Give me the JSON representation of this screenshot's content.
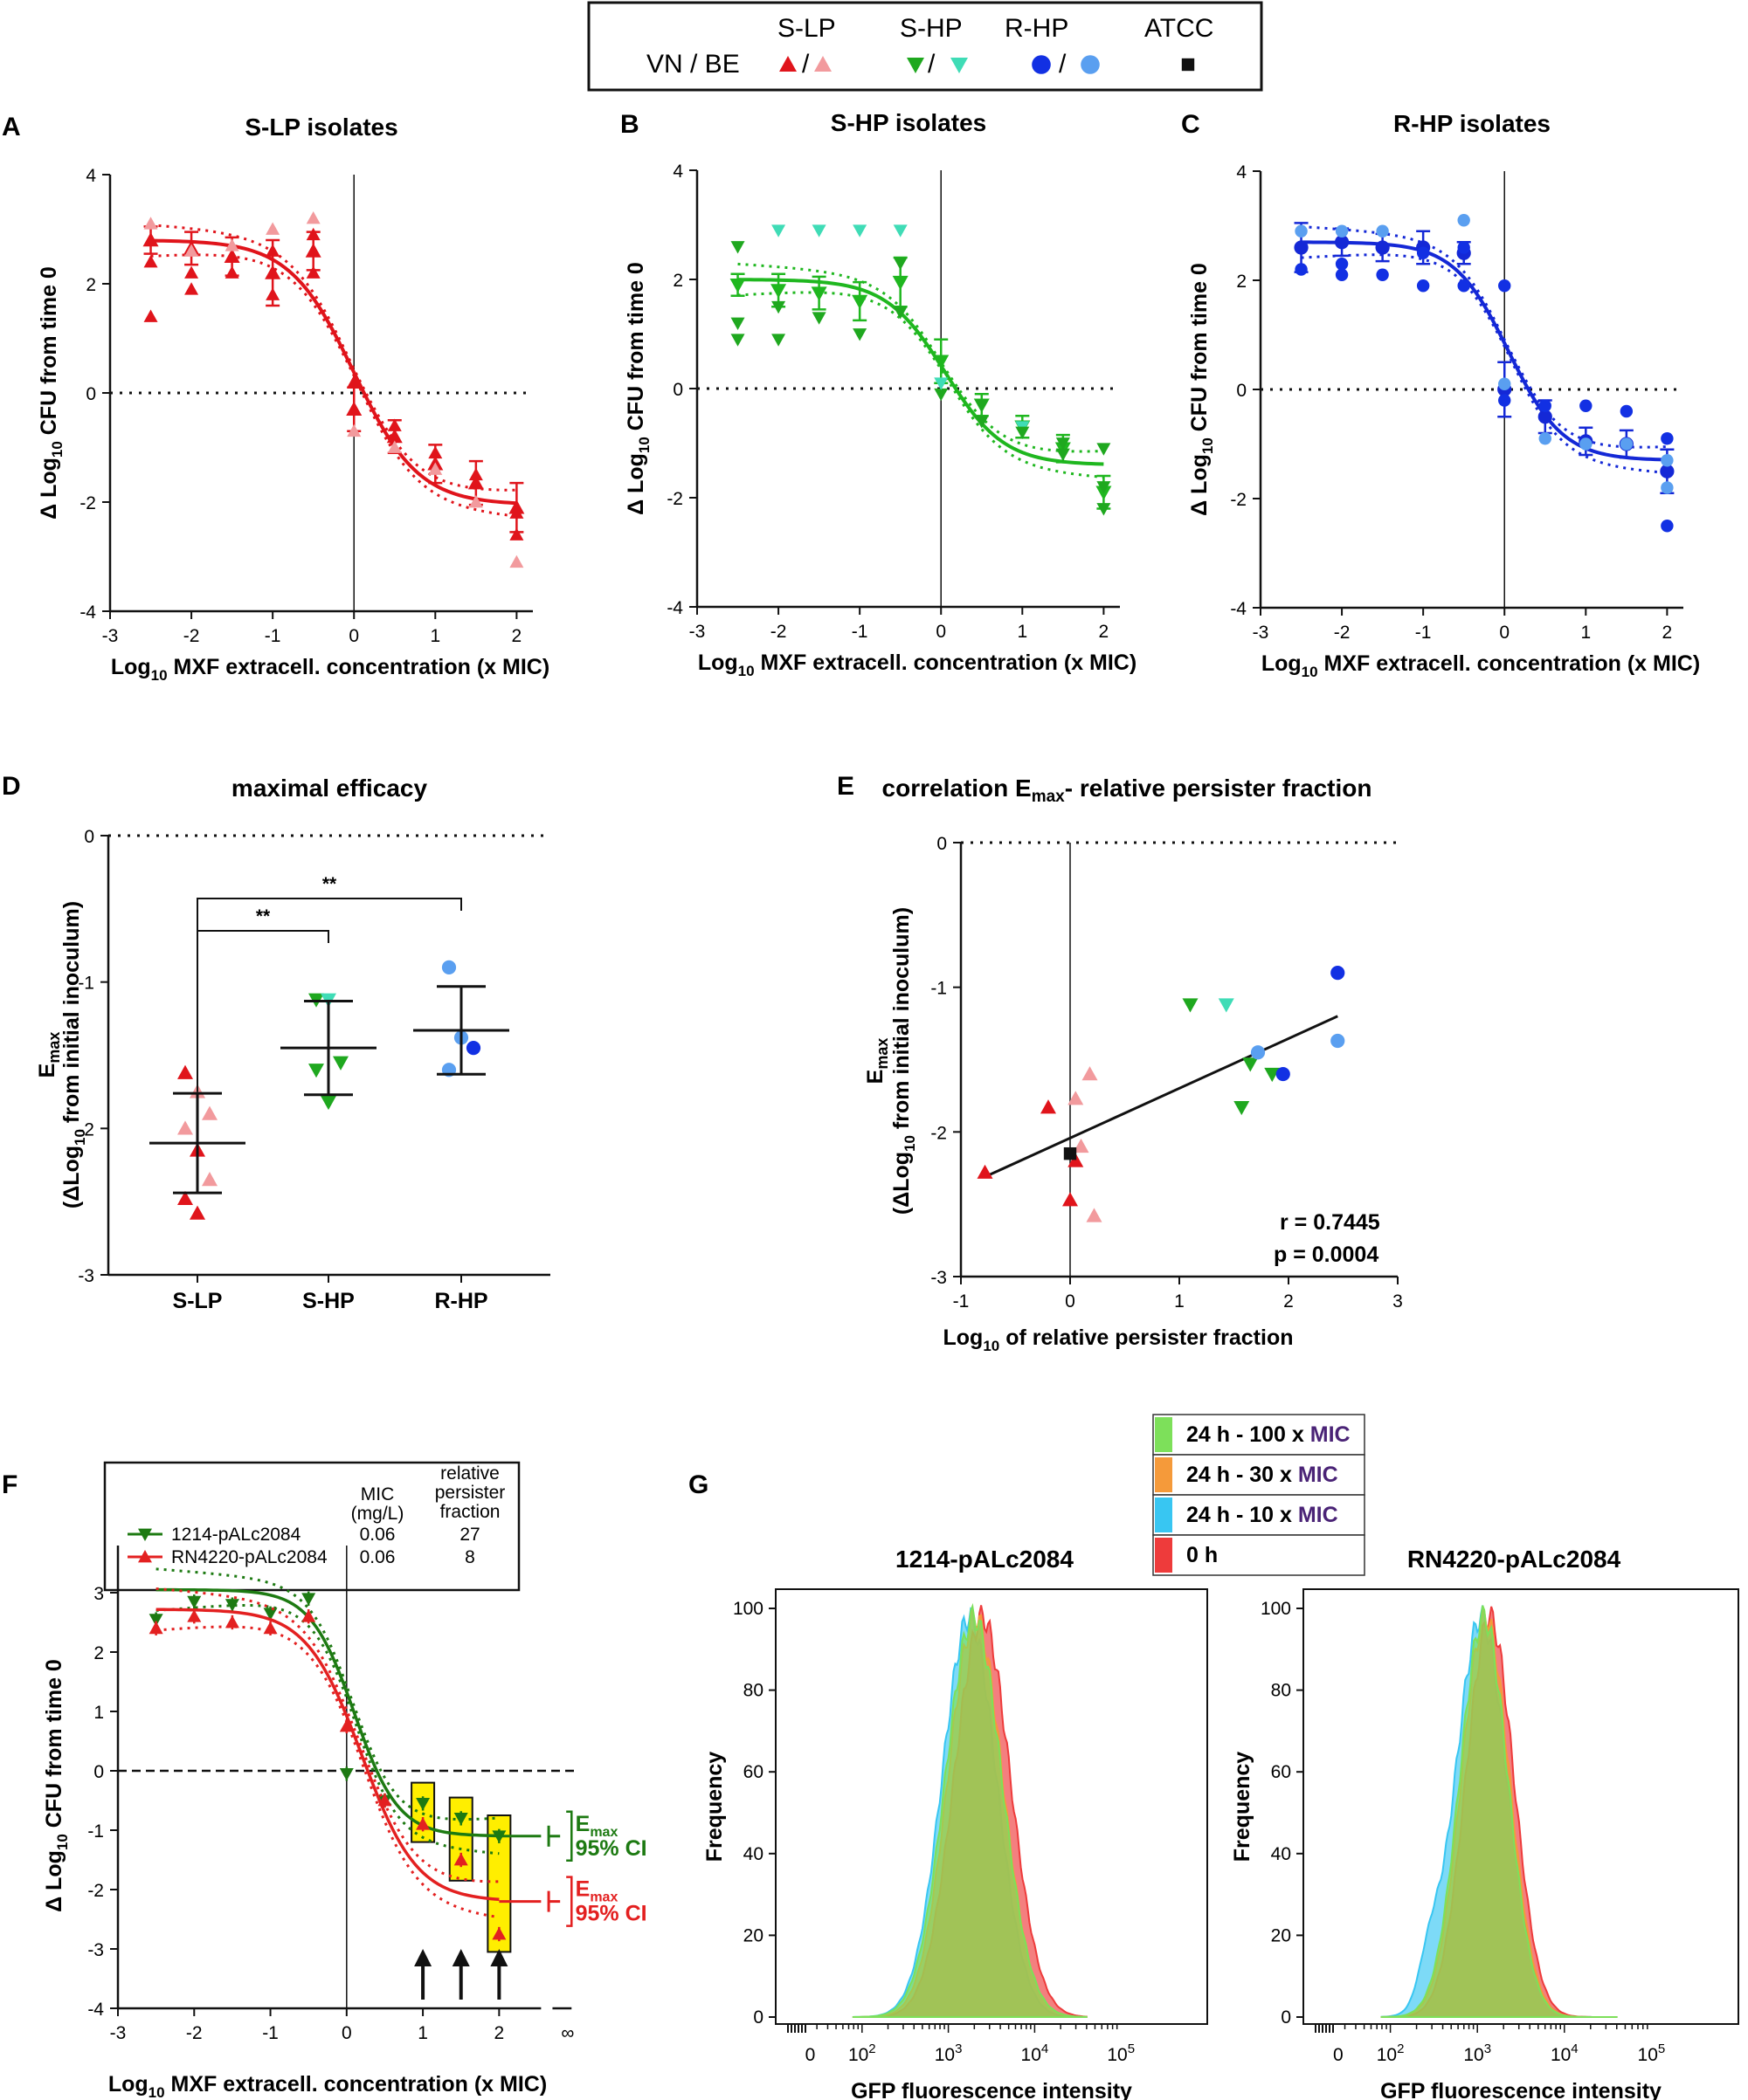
{
  "colors": {
    "vn_lp": "#e0141b",
    "be_lp": "#f29a9d",
    "vn_hp": "#1fa81f",
    "be_hp": "#3fdcb6",
    "vn_rhp": "#1230e3",
    "be_rhp": "#5a9ff0",
    "atcc": "#111111",
    "fit_lp": "#e0141b",
    "fit_hp": "#1fb71f",
    "fit_rhp": "#1428d6",
    "dark_green": "#1d7a12",
    "red": "#e32020",
    "hist_green": "#7de05a",
    "hist_orange": "#f59a3a",
    "hist_cyan": "#38c6f2",
    "hist_red": "#ee3b3b",
    "highlight": "#ffee00",
    "mic_purple": "#4a2376"
  },
  "legend": {
    "row_label": "VN / BE",
    "groups": [
      {
        "label": "S-LP",
        "symbol": "triangle-up"
      },
      {
        "label": "S-HP",
        "symbol": "triangle-down"
      },
      {
        "label": "R-HP",
        "symbol": "circle"
      },
      {
        "label": "ATCC",
        "symbol": "square"
      }
    ],
    "separator": "/"
  },
  "panel_letters": [
    "A",
    "B",
    "C",
    "D",
    "E",
    "F",
    "G"
  ],
  "chart_data": [
    {
      "id": "A",
      "type": "scatter",
      "title": "S-LP isolates",
      "xlabel": "Log10 MXF extracell. concentration (x MIC)",
      "ylabel": "Δ Log10 CFU from time 0",
      "xlim": [
        -3,
        2.2
      ],
      "ylim": [
        -4,
        4
      ],
      "xticks": [
        -3,
        -2,
        -1,
        0,
        1,
        2
      ],
      "yticks": [
        -4,
        -2,
        0,
        2,
        4
      ],
      "fit": {
        "top": 2.8,
        "bottom": -2.05,
        "ec50": 0.0,
        "hill": 1.1
      },
      "x": [
        -2.5,
        -2,
        -1.5,
        -1,
        -0.5,
        0,
        0.5,
        1,
        1.5,
        2
      ],
      "means": [
        2.8,
        2.65,
        2.5,
        2.2,
        2.6,
        -0.3,
        -0.8,
        -1.3,
        -1.65,
        -2.1
      ],
      "sd": [
        0.25,
        0.3,
        0.35,
        0.6,
        0.35,
        0.4,
        0.3,
        0.35,
        0.4,
        0.45
      ],
      "points": [
        [
          -2.5,
          1.4
        ],
        [
          -2.5,
          2.4
        ],
        [
          -2.5,
          3.1
        ],
        [
          -2,
          2.2
        ],
        [
          -2,
          1.9
        ],
        [
          -2,
          2.6
        ],
        [
          -1.5,
          2.2
        ],
        [
          -1.5,
          2.7
        ],
        [
          -1,
          3.0
        ],
        [
          -1,
          2.6
        ],
        [
          -1,
          1.8
        ],
        [
          -0.5,
          2.2
        ],
        [
          -0.5,
          3.2
        ],
        [
          -0.5,
          2.9
        ],
        [
          0,
          -0.3
        ],
        [
          0,
          -0.7
        ],
        [
          0,
          0.2
        ],
        [
          0.5,
          -0.6
        ],
        [
          0.5,
          -1.0
        ],
        [
          1,
          -1.1
        ],
        [
          1,
          -1.4
        ],
        [
          1.5,
          -1.5
        ],
        [
          1.5,
          -2.0
        ],
        [
          2,
          -2.2
        ],
        [
          2,
          -3.1
        ],
        [
          2,
          -2.6
        ]
      ],
      "pointColors": [
        "vn_lp",
        "vn_lp",
        "be_lp",
        "vn_lp",
        "vn_lp",
        "be_lp",
        "vn_lp",
        "be_lp",
        "be_lp",
        "vn_lp",
        "vn_lp",
        "vn_lp",
        "be_lp",
        "vn_lp",
        "vn_lp",
        "be_lp",
        "vn_lp",
        "vn_lp",
        "be_lp",
        "vn_lp",
        "be_lp",
        "vn_lp",
        "be_lp",
        "vn_lp",
        "be_lp",
        "vn_lp"
      ],
      "marker": "triangle-up",
      "fitColor": "fit_lp"
    },
    {
      "id": "B",
      "type": "scatter",
      "title": "S-HP isolates",
      "xlabel": "Log10 MXF extracell. concentration (x MIC)",
      "ylabel": "Δ Log10 CFU from time 0",
      "xlim": [
        -3,
        2.2
      ],
      "ylim": [
        -4,
        4
      ],
      "xticks": [
        -3,
        -2,
        -1,
        0,
        1,
        2
      ],
      "yticks": [
        -4,
        -2,
        0,
        2,
        4
      ],
      "fit": {
        "top": 2.0,
        "bottom": -1.4,
        "ec50": 0.05,
        "hill": 1.2
      },
      "x": [
        -2.5,
        -2,
        -1.5,
        -1,
        -0.5,
        0,
        0.5,
        1,
        1.5,
        2
      ],
      "means": [
        1.9,
        1.8,
        1.75,
        1.6,
        1.95,
        0.5,
        -0.3,
        -0.7,
        -1.1,
        -1.9
      ],
      "sd": [
        0.2,
        0.3,
        0.3,
        0.35,
        0.45,
        0.4,
        0.2,
        0.2,
        0.25,
        0.3
      ],
      "points": [
        [
          -2.5,
          2.6
        ],
        [
          -2.5,
          1.2
        ],
        [
          -2.5,
          0.9
        ],
        [
          -2,
          2.9
        ],
        [
          -2,
          0.9
        ],
        [
          -2,
          1.5
        ],
        [
          -1.5,
          2.9
        ],
        [
          -1.5,
          1.3
        ],
        [
          -1,
          2.9
        ],
        [
          -1,
          1.0
        ],
        [
          -0.5,
          2.9
        ],
        [
          -0.5,
          2.3
        ],
        [
          -0.5,
          1.4
        ],
        [
          0,
          -0.1
        ],
        [
          0,
          0.1
        ],
        [
          0.5,
          -0.3
        ],
        [
          0.5,
          -0.6
        ],
        [
          1,
          -0.7
        ],
        [
          1,
          -0.8
        ],
        [
          1.5,
          -1.0
        ],
        [
          1.5,
          -1.2
        ],
        [
          2,
          -1.1
        ],
        [
          2,
          -1.8
        ],
        [
          2,
          -2.2
        ]
      ],
      "pointColors": [
        "vn_hp",
        "vn_hp",
        "vn_hp",
        "be_hp",
        "vn_hp",
        "vn_hp",
        "be_hp",
        "vn_hp",
        "be_hp",
        "vn_hp",
        "be_hp",
        "vn_hp",
        "vn_hp",
        "vn_hp",
        "be_hp",
        "vn_hp",
        "vn_hp",
        "be_hp",
        "vn_hp",
        "vn_hp",
        "vn_hp",
        "vn_hp",
        "vn_hp",
        "vn_hp"
      ],
      "marker": "triangle-down",
      "fitColor": "fit_hp"
    },
    {
      "id": "C",
      "type": "scatter",
      "title": "R-HP isolates",
      "xlabel": "Log10 MXF extracell. concentration (x MIC)",
      "ylabel": "Δ Log10 CFU from time 0",
      "xlim": [
        -3,
        2.2
      ],
      "ylim": [
        -4,
        4
      ],
      "xticks": [
        -3,
        -2,
        -1,
        0,
        1,
        2
      ],
      "yticks": [
        -4,
        -2,
        0,
        2,
        4
      ],
      "fit": {
        "top": 2.7,
        "bottom": -1.3,
        "ec50": 0.05,
        "hill": 1.3
      },
      "x": [
        -2.5,
        -2,
        -1.5,
        -1,
        -0.5,
        0,
        0.5,
        1,
        1.5,
        2
      ],
      "means": [
        2.6,
        2.7,
        2.6,
        2.6,
        2.5,
        0.0,
        -0.5,
        -0.95,
        -1.0,
        -1.5
      ],
      "sd": [
        0.45,
        0.25,
        0.25,
        0.3,
        0.2,
        0.5,
        0.3,
        0.25,
        0.25,
        0.4
      ],
      "points": [
        [
          -2.5,
          2.2
        ],
        [
          -2.5,
          2.9
        ],
        [
          -2,
          2.1
        ],
        [
          -2,
          2.3
        ],
        [
          -2,
          2.9
        ],
        [
          -1.5,
          2.1
        ],
        [
          -1.5,
          2.9
        ],
        [
          -1,
          2.5
        ],
        [
          -1,
          1.9
        ],
        [
          -0.5,
          3.1
        ],
        [
          -0.5,
          2.6
        ],
        [
          -0.5,
          1.9
        ],
        [
          0,
          1.9
        ],
        [
          0,
          -0.2
        ],
        [
          0,
          0.1
        ],
        [
          0.5,
          -0.3
        ],
        [
          0.5,
          -0.9
        ],
        [
          1,
          -0.3
        ],
        [
          1,
          -1.0
        ],
        [
          1.5,
          -0.4
        ],
        [
          1.5,
          -1.0
        ],
        [
          2,
          -0.9
        ],
        [
          2,
          -1.3
        ],
        [
          2,
          -1.8
        ],
        [
          2,
          -2.5
        ]
      ],
      "pointColors": [
        "vn_rhp",
        "be_rhp",
        "vn_rhp",
        "vn_rhp",
        "be_rhp",
        "vn_rhp",
        "be_rhp",
        "vn_rhp",
        "vn_rhp",
        "be_rhp",
        "vn_rhp",
        "vn_rhp",
        "vn_rhp",
        "vn_rhp",
        "be_rhp",
        "vn_rhp",
        "be_rhp",
        "vn_rhp",
        "be_rhp",
        "vn_rhp",
        "be_rhp",
        "vn_rhp",
        "be_rhp",
        "be_rhp",
        "vn_rhp"
      ],
      "marker": "circle",
      "fitColor": "fit_rhp"
    },
    {
      "id": "D",
      "type": "scatter",
      "title": "maximal efficacy",
      "ylabel_main": "E",
      "ylabel_sub": "max",
      "ylabel2": "(ΔLog10 from initial inoculum)",
      "ylim": [
        -3,
        0
      ],
      "yticks": [
        -3,
        -2,
        -1,
        0
      ],
      "categories": [
        "S-LP",
        "S-HP",
        "R-HP"
      ],
      "groups": [
        {
          "mean": -2.1,
          "sd": 0.34,
          "points": [
            [
              -1.62,
              "vn_lp"
            ],
            [
              -1.75,
              "be_lp"
            ],
            [
              -1.9,
              "be_lp"
            ],
            [
              -2.0,
              "be_lp"
            ],
            [
              -2.15,
              "vn_lp"
            ],
            [
              -2.35,
              "be_lp"
            ],
            [
              -2.48,
              "vn_lp"
            ],
            [
              -2.58,
              "vn_lp"
            ]
          ],
          "marker": "triangle-up"
        },
        {
          "mean": -1.45,
          "sd": 0.32,
          "points": [
            [
              -1.12,
              "vn_hp"
            ],
            [
              -1.12,
              "be_hp"
            ],
            [
              -1.55,
              "vn_hp"
            ],
            [
              -1.6,
              "vn_hp"
            ],
            [
              -1.82,
              "vn_hp"
            ]
          ],
          "marker": "triangle-down"
        },
        {
          "mean": -1.33,
          "sd": 0.3,
          "points": [
            [
              -0.9,
              "be_rhp"
            ],
            [
              -1.38,
              "be_rhp"
            ],
            [
              -1.45,
              "vn_rhp"
            ],
            [
              -1.6,
              "be_rhp"
            ]
          ],
          "marker": "circle"
        }
      ],
      "significance": [
        {
          "from": 0,
          "to": 1,
          "label": "**"
        },
        {
          "from": 0,
          "to": 2,
          "label": "**"
        }
      ]
    },
    {
      "id": "E",
      "type": "scatter",
      "title_main": "correlation E",
      "title_sub": "max",
      "title_rest": "- relative persister fraction",
      "xlabel": "Log10 of relative persister fraction",
      "xlim": [
        -1,
        3
      ],
      "ylim": [
        -3,
        0
      ],
      "xticks": [
        -1,
        0,
        1,
        2,
        3
      ],
      "yticks": [
        -3,
        -2,
        -1,
        0
      ],
      "regression": {
        "x0": -0.75,
        "y0": -2.3,
        "x1": 2.45,
        "y1": -1.2
      },
      "points": [
        {
          "x": -0.78,
          "y": -2.28,
          "c": "vn_lp",
          "m": "triangle-up"
        },
        {
          "x": -0.2,
          "y": -1.83,
          "c": "vn_lp",
          "m": "triangle-up"
        },
        {
          "x": 0.05,
          "y": -1.77,
          "c": "be_lp",
          "m": "triangle-up"
        },
        {
          "x": 0.18,
          "y": -1.6,
          "c": "be_lp",
          "m": "triangle-up"
        },
        {
          "x": 0.1,
          "y": -2.1,
          "c": "be_lp",
          "m": "triangle-up"
        },
        {
          "x": 0.05,
          "y": -2.2,
          "c": "vn_lp",
          "m": "triangle-up"
        },
        {
          "x": 0.0,
          "y": -2.47,
          "c": "vn_lp",
          "m": "triangle-up"
        },
        {
          "x": 0.22,
          "y": -2.58,
          "c": "be_lp",
          "m": "triangle-up"
        },
        {
          "x": 0.0,
          "y": -2.15,
          "c": "atcc",
          "m": "square"
        },
        {
          "x": 1.1,
          "y": -1.12,
          "c": "vn_hp",
          "m": "triangle-down"
        },
        {
          "x": 1.43,
          "y": -1.12,
          "c": "be_hp",
          "m": "triangle-down"
        },
        {
          "x": 1.57,
          "y": -1.83,
          "c": "vn_hp",
          "m": "triangle-down"
        },
        {
          "x": 1.65,
          "y": -1.53,
          "c": "vn_hp",
          "m": "triangle-down"
        },
        {
          "x": 1.85,
          "y": -1.6,
          "c": "vn_hp",
          "m": "triangle-down"
        },
        {
          "x": 1.72,
          "y": -1.45,
          "c": "be_rhp",
          "m": "circle"
        },
        {
          "x": 1.95,
          "y": -1.6,
          "c": "vn_rhp",
          "m": "circle"
        },
        {
          "x": 2.45,
          "y": -0.9,
          "c": "vn_rhp",
          "m": "circle"
        },
        {
          "x": 2.45,
          "y": -1.37,
          "c": "be_rhp",
          "m": "circle"
        }
      ],
      "r_label": "r = 0.7445",
      "p_label": "p = 0.0004"
    },
    {
      "id": "F",
      "type": "scatter",
      "xlabel": "Log10 MXF extracell. concentration (x MIC)",
      "ylabel": "Δ Log10 CFU from time 0",
      "xlim": [
        -3,
        2.5
      ],
      "ylim": [
        -4,
        3.5
      ],
      "xticks": [
        -3,
        -2,
        -1,
        0,
        1,
        2
      ],
      "yticks": [
        -4,
        -3,
        -2,
        -1,
        0,
        1,
        2,
        3
      ],
      "inf_label": "∞",
      "table": {
        "col_mic": "MIC",
        "col_mic_unit": "(mg/L)",
        "col_rel": [
          "relative",
          "persister",
          "fraction"
        ],
        "rows": [
          {
            "name": "1214-pALc2084",
            "mic": "0.06",
            "rel": "27",
            "color": "dark_green",
            "marker": "triangle-down"
          },
          {
            "name": "RN4220-pALc2084",
            "mic": "0.06",
            "rel": "8",
            "color": "red",
            "marker": "triangle-up"
          }
        ]
      },
      "series": [
        {
          "name": "1214-pALc2084",
          "color": "dark_green",
          "marker": "triangle-down",
          "fit": {
            "top": 3.05,
            "bottom": -1.1,
            "ec50": 0.1,
            "hill": 1.5
          },
          "x": [
            -2.5,
            -2,
            -1.5,
            -1,
            -0.5,
            0,
            0.5,
            1,
            1.5,
            2
          ],
          "y": [
            2.55,
            2.85,
            2.8,
            2.65,
            2.9,
            -0.05,
            -0.5,
            -0.55,
            -0.8,
            -1.1
          ]
        },
        {
          "name": "RN4220-pALc2084",
          "color": "red",
          "marker": "triangle-up",
          "fit": {
            "top": 2.72,
            "bottom": -2.2,
            "ec50": 0.2,
            "hill": 1.2
          },
          "x": [
            -2.5,
            -2,
            -1.5,
            -1,
            -0.5,
            0,
            0.5,
            1,
            1.5,
            2
          ],
          "y": [
            2.4,
            2.6,
            2.5,
            2.4,
            2.6,
            0.75,
            -0.5,
            -0.9,
            -1.5,
            -2.75
          ]
        }
      ],
      "highlight_x": [
        1,
        1.5,
        2
      ],
      "emax_label": "E",
      "emax_sub": "max",
      "ci_label": "95% CI"
    },
    {
      "id": "G",
      "type": "area",
      "legend": [
        {
          "label": "24 h - 100 x ",
          "mic": "MIC",
          "color": "hist_green"
        },
        {
          "label": "24 h - 30 x ",
          "mic": "MIC",
          "color": "hist_orange"
        },
        {
          "label": "24 h - 10 x ",
          "mic": "MIC",
          "color": "hist_cyan"
        },
        {
          "label": "0 h",
          "mic": "",
          "color": "hist_red"
        }
      ],
      "xlabel": "GFP fluorescence intensity",
      "ylabel": "Frequency",
      "ylim": [
        0,
        100
      ],
      "yticks": [
        0,
        20,
        40,
        60,
        80,
        100
      ],
      "xticks": [
        "0",
        "10 2",
        "10 3",
        "10 4",
        "10 5"
      ],
      "plots": [
        {
          "title": "1214-pALc2084",
          "curves": [
            {
              "color": "hist_cyan",
              "peak": 3.25,
              "width": 0.32,
              "shoulder": 0
            },
            {
              "color": "hist_red",
              "peak": 3.4,
              "width": 0.33,
              "shoulder": 0
            },
            {
              "color": "hist_orange",
              "peak": 3.32,
              "width": 0.32,
              "shoulder": 0
            },
            {
              "color": "hist_green",
              "peak": 3.3,
              "width": 0.33,
              "shoulder": 0
            }
          ]
        },
        {
          "title": "RN4220-pALc2084",
          "curves": [
            {
              "color": "hist_cyan",
              "peak": 3.05,
              "width": 0.3,
              "shoulder": 1
            },
            {
              "color": "hist_red",
              "peak": 3.15,
              "width": 0.28,
              "shoulder": 0
            },
            {
              "color": "hist_orange",
              "peak": 3.1,
              "width": 0.28,
              "shoulder": 0
            },
            {
              "color": "hist_green",
              "peak": 3.08,
              "width": 0.28,
              "shoulder": 0
            }
          ]
        }
      ]
    }
  ]
}
